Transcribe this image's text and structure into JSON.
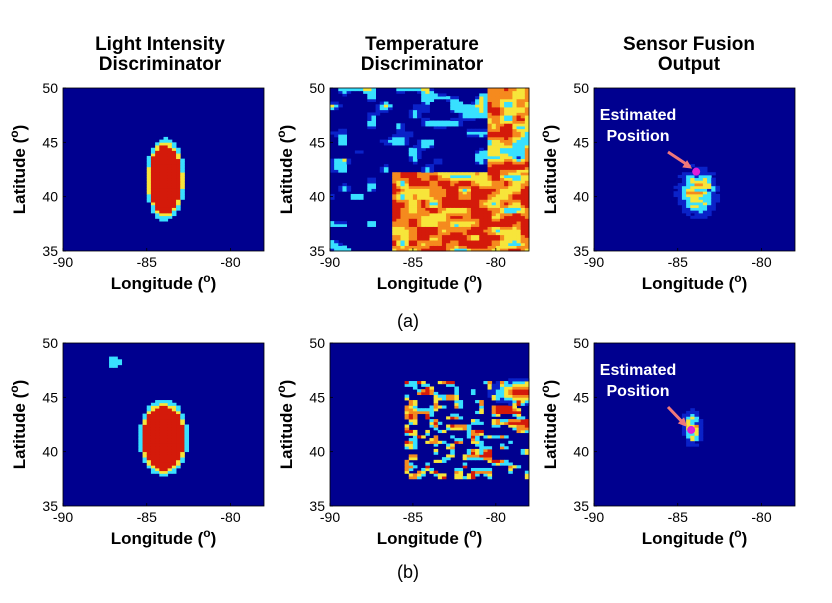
{
  "column_titles": [
    [
      "Light Intensity",
      "Discriminator"
    ],
    [
      "Temperature",
      "Discriminator"
    ],
    [
      "Sensor Fusion",
      "Output"
    ]
  ],
  "row_labels": [
    "(a)",
    "(b)"
  ],
  "colors": {
    "background": "#00008f",
    "low": "#0a22c8",
    "cyan": "#38e0ff",
    "yellow": "#f7e53a",
    "orange": "#f58a1e",
    "red": "#d41a0a",
    "magenta": "#e020d8",
    "arrow": "#f0787a"
  },
  "chart_data": [
    {
      "type": "heatmap",
      "row": "(a)",
      "column": "Light Intensity Discriminator",
      "xlabel": "Longitude (o)",
      "ylabel": "Latitude (o)",
      "xlim": [
        -90,
        -78
      ],
      "ylim": [
        35,
        50
      ],
      "xticks": [
        -90,
        -85,
        -80
      ],
      "yticks": [
        35,
        40,
        45,
        50
      ],
      "regions": [
        {
          "level": "high",
          "lon": [
            -84.8,
            -82.9
          ],
          "lat": [
            38.1,
            45.1
          ]
        }
      ]
    },
    {
      "type": "heatmap",
      "row": "(a)",
      "column": "Temperature Discriminator",
      "xlabel": "Longitude (o)",
      "ylabel": "Latitude (o)",
      "xlim": [
        -90,
        -78
      ],
      "ylim": [
        35,
        50
      ],
      "xticks": [
        -90,
        -85,
        -80
      ],
      "yticks": [
        35,
        40,
        45,
        50
      ],
      "regions": [
        {
          "level": "mixed",
          "lon": [
            -86.3,
            -78
          ],
          "lat": [
            35,
            42.5
          ]
        },
        {
          "level": "mixed",
          "lon": [
            -80.5,
            -78
          ],
          "lat": [
            42,
            50
          ]
        }
      ]
    },
    {
      "type": "heatmap",
      "row": "(a)",
      "column": "Sensor Fusion Output",
      "xlabel": "Longitude (o)",
      "ylabel": "Latitude (o)",
      "xlim": [
        -90,
        -78
      ],
      "ylim": [
        35,
        50
      ],
      "xticks": [
        -90,
        -85,
        -80
      ],
      "yticks": [
        35,
        40,
        45,
        50
      ],
      "annotation": {
        "text": [
          "Estimated",
          "Position"
        ],
        "lon": -83.9,
        "lat": 42.3
      },
      "regions": [
        {
          "level": "mixed",
          "lon": [
            -84.8,
            -82.6
          ],
          "lat": [
            38.3,
            42.5
          ]
        }
      ]
    },
    {
      "type": "heatmap",
      "row": "(b)",
      "column": "Light Intensity Discriminator",
      "xlabel": "Longitude (o)",
      "ylabel": "Latitude (o)",
      "xlim": [
        -90,
        -78
      ],
      "ylim": [
        35,
        50
      ],
      "xticks": [
        -90,
        -85,
        -80
      ],
      "yticks": [
        35,
        40,
        45,
        50
      ],
      "regions": [
        {
          "level": "high",
          "lon": [
            -85.4,
            -82.6
          ],
          "lat": [
            38.0,
            44.6
          ]
        },
        {
          "level": "mid",
          "lon": [
            -87.3,
            -86.6
          ],
          "lat": [
            47.7,
            48.8
          ]
        }
      ]
    },
    {
      "type": "heatmap",
      "row": "(b)",
      "column": "Temperature Discriminator",
      "xlabel": "Longitude (o)",
      "ylabel": "Latitude (o)",
      "xlim": [
        -90,
        -78
      ],
      "ylim": [
        35,
        50
      ],
      "xticks": [
        -90,
        -85,
        -80
      ],
      "yticks": [
        35,
        40,
        45,
        50
      ],
      "regions": [
        {
          "level": "mixed",
          "lon": [
            -85.5,
            -78
          ],
          "lat": [
            37.5,
            46.5
          ]
        }
      ]
    },
    {
      "type": "heatmap",
      "row": "(b)",
      "column": "Sensor Fusion Output",
      "xlabel": "Longitude (o)",
      "ylabel": "Latitude (o)",
      "xlim": [
        -90,
        -78
      ],
      "ylim": [
        35,
        50
      ],
      "xticks": [
        -90,
        -85,
        -80
      ],
      "yticks": [
        35,
        40,
        45,
        50
      ],
      "annotation": {
        "text": [
          "Estimated",
          "Position"
        ],
        "lon": -84.2,
        "lat": 42.0
      },
      "regions": [
        {
          "level": "mixed",
          "lon": [
            -84.6,
            -83.6
          ],
          "lat": [
            41.4,
            44.2
          ]
        }
      ]
    }
  ]
}
